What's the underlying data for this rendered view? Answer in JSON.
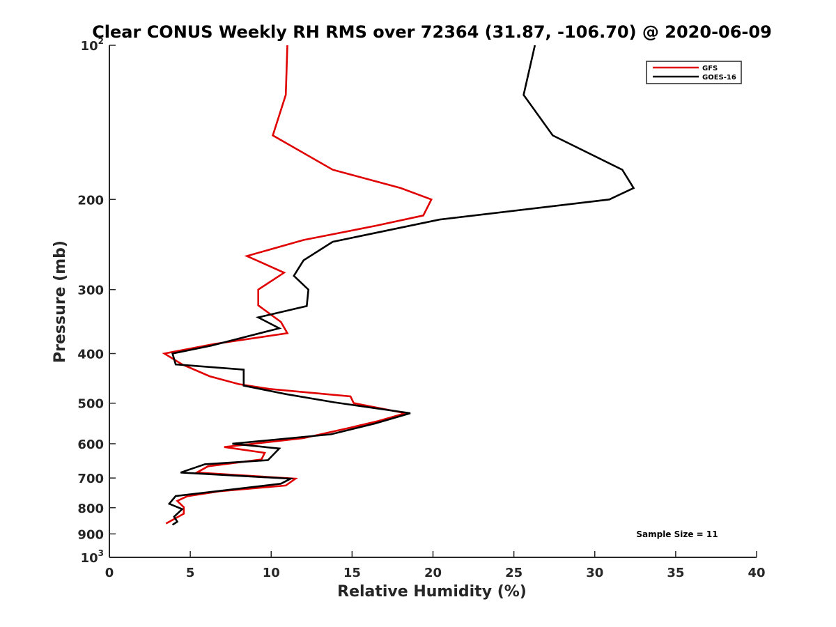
{
  "chart_data": {
    "type": "line",
    "title": "Clear CONUS Weekly RH RMS over 72364 (31.87, -106.70) @ 2020-06-09",
    "xlabel": "Relative Humidity (%)",
    "ylabel": "Pressure (mb)",
    "xlim": [
      0,
      40
    ],
    "ylim": [
      100,
      1000
    ],
    "y_scale": "log",
    "y_reversed": true,
    "x_ticks": [
      0,
      5,
      10,
      15,
      20,
      25,
      30,
      35,
      40
    ],
    "y_ticks": [
      {
        "value": 100,
        "base": "10",
        "exp": "2"
      },
      {
        "value": 200,
        "label": "200"
      },
      {
        "value": 300,
        "label": "300"
      },
      {
        "value": 400,
        "label": "400"
      },
      {
        "value": 500,
        "label": "500"
      },
      {
        "value": 600,
        "label": "600"
      },
      {
        "value": 700,
        "label": "700"
      },
      {
        "value": 800,
        "label": "800"
      },
      {
        "value": 900,
        "label": "900"
      },
      {
        "value": 1000,
        "base": "10",
        "exp": "3"
      }
    ],
    "legend_position": "top-right",
    "annotation": "Sample Size = 11",
    "series": [
      {
        "name": "GFS",
        "color": "#e00000",
        "points": [
          [
            11.0,
            100
          ],
          [
            10.9,
            125
          ],
          [
            10.1,
            150
          ],
          [
            13.8,
            175
          ],
          [
            18.0,
            190
          ],
          [
            19.9,
            200
          ],
          [
            19.4,
            215
          ],
          [
            16.5,
            225
          ],
          [
            12.0,
            240
          ],
          [
            8.5,
            258
          ],
          [
            10.8,
            278
          ],
          [
            9.2,
            300
          ],
          [
            9.2,
            322
          ],
          [
            10.6,
            347
          ],
          [
            11.0,
            365
          ],
          [
            6.5,
            383
          ],
          [
            3.4,
            400
          ],
          [
            4.5,
            420
          ],
          [
            6.2,
            443
          ],
          [
            8.0,
            459
          ],
          [
            9.9,
            469
          ],
          [
            14.9,
            485
          ],
          [
            15.1,
            500
          ],
          [
            18.3,
            523
          ],
          [
            16.6,
            542
          ],
          [
            14.7,
            560
          ],
          [
            12.0,
            585
          ],
          [
            7.1,
            609
          ],
          [
            9.6,
            625
          ],
          [
            9.4,
            644
          ],
          [
            6.1,
            664
          ],
          [
            5.4,
            683
          ],
          [
            11.5,
            702
          ],
          [
            10.9,
            724
          ],
          [
            6.8,
            743
          ],
          [
            4.8,
            760
          ],
          [
            4.2,
            776
          ],
          [
            4.6,
            798
          ],
          [
            4.6,
            822
          ],
          [
            3.5,
            859
          ]
        ]
      },
      {
        "name": "GOES-16",
        "color": "#000000",
        "points": [
          [
            26.3,
            100
          ],
          [
            25.6,
            125
          ],
          [
            27.4,
            150
          ],
          [
            31.7,
            175
          ],
          [
            32.4,
            190
          ],
          [
            30.9,
            200
          ],
          [
            20.4,
            219
          ],
          [
            13.8,
            242
          ],
          [
            12.0,
            263
          ],
          [
            11.4,
            282
          ],
          [
            12.3,
            300
          ],
          [
            12.2,
            323
          ],
          [
            9.2,
            340
          ],
          [
            10.5,
            357
          ],
          [
            6.3,
            386
          ],
          [
            3.9,
            400
          ],
          [
            4.1,
            420
          ],
          [
            8.3,
            430
          ],
          [
            8.3,
            462
          ],
          [
            10.9,
            480
          ],
          [
            13.9,
            498
          ],
          [
            18.6,
            523
          ],
          [
            16.4,
            548
          ],
          [
            13.7,
            575
          ],
          [
            7.6,
            600
          ],
          [
            10.5,
            613
          ],
          [
            9.8,
            646
          ],
          [
            5.9,
            658
          ],
          [
            4.4,
            683
          ],
          [
            11.2,
            702
          ],
          [
            10.6,
            718
          ],
          [
            4.1,
            759
          ],
          [
            3.7,
            786
          ],
          [
            4.5,
            805
          ],
          [
            4.0,
            833
          ],
          [
            4.2,
            852
          ],
          [
            3.9,
            864
          ]
        ]
      }
    ]
  }
}
